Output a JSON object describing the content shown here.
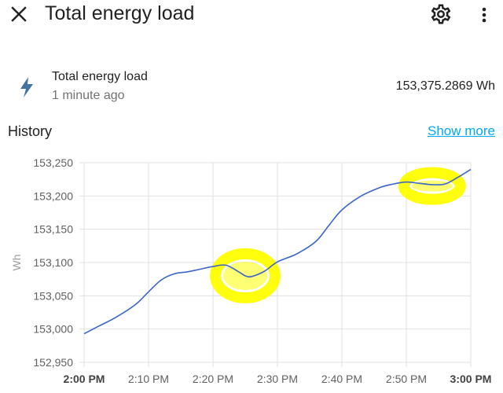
{
  "header": {
    "title": "Total energy load"
  },
  "entity": {
    "name": "Total energy load",
    "last_changed": "1 minute ago",
    "state": "153,375.2869 Wh",
    "icon": "lightning-bolt-icon"
  },
  "history": {
    "title": "History",
    "show_more": "Show more"
  },
  "colors": {
    "line": "#3b65c7",
    "highlight": "#ffff00",
    "link": "#03a9f4",
    "icon": "#44739e"
  },
  "chart_data": {
    "type": "line",
    "ylabel": "Wh",
    "ylim": [
      152950,
      153250
    ],
    "yticks": [
      "153,250",
      "153,200",
      "153,150",
      "153,100",
      "153,050",
      "153,000",
      "152,950"
    ],
    "ytick_values": [
      153250,
      153200,
      153150,
      153100,
      153050,
      153000,
      152950
    ],
    "xticks": [
      "2:00 PM",
      "2:10 PM",
      "2:20 PM",
      "2:30 PM",
      "2:40 PM",
      "2:50 PM",
      "3:00 PM"
    ],
    "xtick_bold": [
      true,
      false,
      false,
      false,
      false,
      false,
      true
    ],
    "xlim": [
      0,
      60
    ],
    "grid": true,
    "series": [
      {
        "x": [
          0,
          2,
          5,
          8,
          10,
          12,
          14,
          16,
          18,
          20,
          22,
          24,
          25,
          26,
          28,
          30,
          33,
          36,
          38,
          40,
          43,
          46,
          48,
          50,
          52,
          54,
          56,
          58,
          60
        ],
        "values": [
          152993,
          153003,
          153018,
          153037,
          153056,
          153074,
          153083,
          153086,
          153090,
          153094,
          153096,
          153086,
          153080,
          153079,
          153087,
          153101,
          153113,
          153132,
          153156,
          153179,
          153200,
          153213,
          153218,
          153221,
          153219,
          153217,
          153218,
          153228,
          153240
        ]
      }
    ],
    "annotations": [
      {
        "type": "highlight-circle",
        "x_center": 25,
        "y_center": 153080
      },
      {
        "type": "highlight-circle",
        "x_center": 54,
        "y_center": 153215
      }
    ]
  }
}
